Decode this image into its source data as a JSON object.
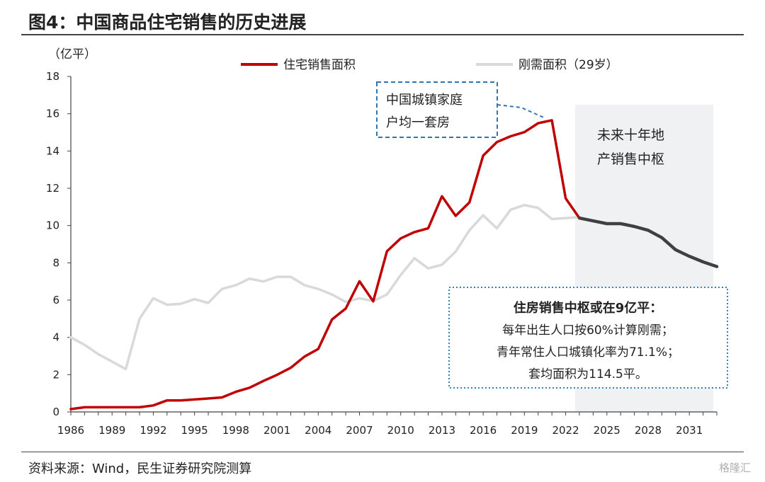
{
  "title": "图4：中国商品住宅销售的历史进展",
  "source": "资料来源：Wind，民生证券研究院测算",
  "watermark": "格隆汇",
  "colors": {
    "residential": "#c00000",
    "rigid": "#d9d9d9",
    "forecast": "#404040",
    "forecast_bg": "#f0f1f3",
    "callout1": "#2f75b5",
    "callout2": "#2e86c1"
  },
  "chart_data": {
    "type": "line",
    "ylabel": "（亿平）",
    "ylim": [
      0,
      18
    ],
    "yticks": [
      0,
      2,
      4,
      6,
      8,
      10,
      12,
      14,
      16,
      18
    ],
    "xlim": [
      1986,
      2033
    ],
    "xticks": [
      1986,
      1989,
      1992,
      1995,
      1998,
      2001,
      2004,
      2007,
      2010,
      2013,
      2016,
      2019,
      2022,
      2025,
      2028,
      2031
    ],
    "legend_position": "top",
    "series": [
      {
        "name": "住宅销售面积",
        "x": [
          1986,
          1987,
          1988,
          1989,
          1990,
          1991,
          1992,
          1993,
          1994,
          1995,
          1996,
          1997,
          1998,
          1999,
          2000,
          2001,
          2002,
          2003,
          2004,
          2005,
          2006,
          2007,
          2008,
          2009,
          2010,
          2011,
          2012,
          2013,
          2014,
          2015,
          2016,
          2017,
          2018,
          2019,
          2020,
          2021,
          2022,
          2023
        ],
        "values": [
          0.15,
          0.25,
          0.25,
          0.25,
          0.25,
          0.25,
          0.35,
          0.62,
          0.62,
          0.67,
          0.72,
          0.78,
          1.08,
          1.3,
          1.66,
          1.99,
          2.37,
          2.97,
          3.38,
          4.96,
          5.55,
          7.01,
          5.93,
          8.62,
          9.31,
          9.65,
          9.85,
          11.57,
          10.52,
          11.24,
          13.75,
          14.48,
          14.79,
          15.01,
          15.49,
          15.65,
          11.46,
          10.4
        ]
      },
      {
        "name": "刚需面积（29岁）",
        "x": [
          1986,
          1987,
          1988,
          1989,
          1990,
          1991,
          1992,
          1993,
          1994,
          1995,
          1996,
          1997,
          1998,
          1999,
          2000,
          2001,
          2002,
          2003,
          2004,
          2005,
          2006,
          2007,
          2008,
          2009,
          2010,
          2011,
          2012,
          2013,
          2014,
          2015,
          2016,
          2017,
          2018,
          2019,
          2020,
          2021,
          2022,
          2023
        ],
        "values": [
          4.0,
          3.6,
          3.1,
          2.7,
          2.3,
          5.0,
          6.1,
          5.75,
          5.8,
          6.05,
          5.85,
          6.6,
          6.8,
          7.15,
          7.0,
          7.25,
          7.25,
          6.8,
          6.6,
          6.3,
          5.9,
          6.1,
          5.95,
          6.3,
          7.35,
          8.25,
          7.7,
          7.9,
          8.6,
          9.75,
          10.55,
          9.85,
          10.85,
          11.1,
          10.95,
          10.35,
          10.4,
          10.45
        ]
      },
      {
        "name": "forecast",
        "x": [
          2023,
          2024,
          2025,
          2026,
          2027,
          2028,
          2029,
          2030,
          2031,
          2032,
          2033
        ],
        "values": [
          10.4,
          10.25,
          10.1,
          10.1,
          9.95,
          9.75,
          9.35,
          8.7,
          8.35,
          8.05,
          7.8
        ]
      }
    ],
    "annotations": [
      {
        "id": "peak",
        "lines": [
          "中国城镇家庭",
          "户均一套房"
        ]
      },
      {
        "id": "forecast_label",
        "lines": [
          "未来十年地",
          "产销售中枢"
        ]
      },
      {
        "id": "pivot_note",
        "lines": [
          "住房销售中枢或在9亿平：",
          "每年出生人口按60%计算刚需；",
          "青年常住人口城镇化率为71.1%；",
          "套均面积为114.5平。"
        ]
      }
    ]
  }
}
